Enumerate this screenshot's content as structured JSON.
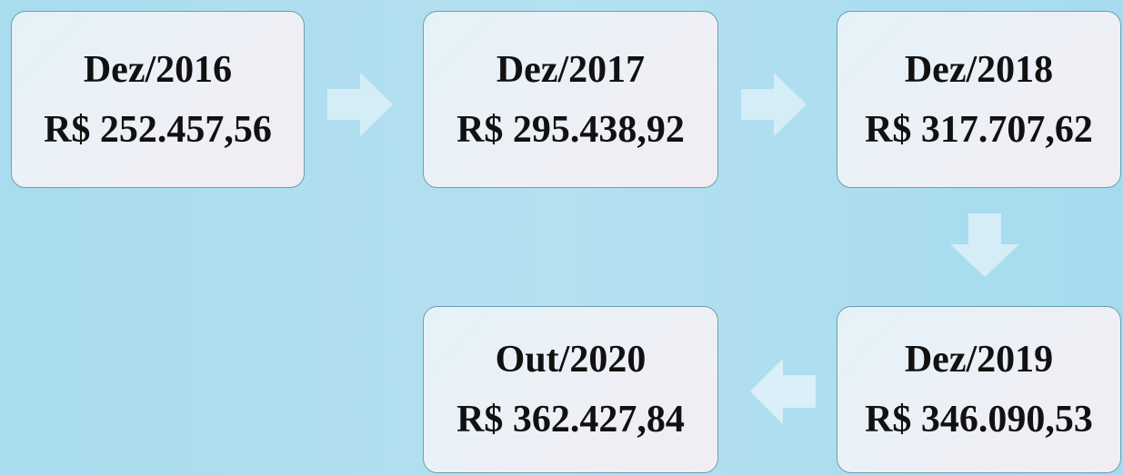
{
  "nodes": [
    {
      "label": "Dez/2016",
      "value": "R$ 252.457,56"
    },
    {
      "label": "Dez/2017",
      "value": "R$ 295.438,92"
    },
    {
      "label": "Dez/2018",
      "value": "R$ 317.707,62"
    },
    {
      "label": "Dez/2019",
      "value": "R$ 346.090,53"
    },
    {
      "label": "Out/2020",
      "value": "R$ 362.427,84"
    }
  ]
}
